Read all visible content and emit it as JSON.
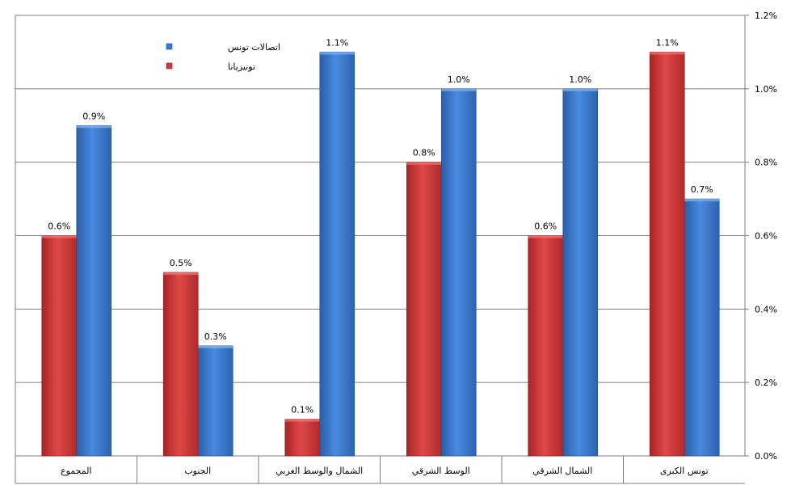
{
  "chart_data": {
    "type": "bar",
    "categories": [
      "المجموع",
      "الجنوب",
      "الشمال والوسط الغربي",
      "الوسط الشرقي",
      "الشمال الشرقي",
      "تونس الكبرى"
    ],
    "series": [
      {
        "name": "تونيزيانا",
        "color": "#d03a3a",
        "values": [
          0.6,
          0.5,
          0.1,
          0.8,
          0.6,
          1.1
        ],
        "labels": [
          "0.6%",
          "0.5%",
          "0.1%",
          "0.8%",
          "0.6%",
          "1.1%"
        ]
      },
      {
        "name": "اتصالات تونس",
        "color": "#3a78cf",
        "values": [
          0.9,
          0.3,
          1.1,
          1.0,
          1.0,
          0.7
        ],
        "labels": [
          "0.9%",
          "0.3%",
          "1.1%",
          "1.0%",
          "1.0%",
          "0.7%"
        ]
      }
    ],
    "yticks": [
      0.0,
      0.2,
      0.4,
      0.6,
      0.8,
      1.0,
      1.2
    ],
    "ytick_labels": [
      "0.0%",
      "0.2%",
      "0.4%",
      "0.6%",
      "0.8%",
      "1.0%",
      "1.2%"
    ],
    "ylim": [
      0,
      1.2
    ],
    "y_axis_side": "right",
    "grid": true,
    "legend_placement": "top-left",
    "legend_order": [
      1,
      0
    ]
  }
}
